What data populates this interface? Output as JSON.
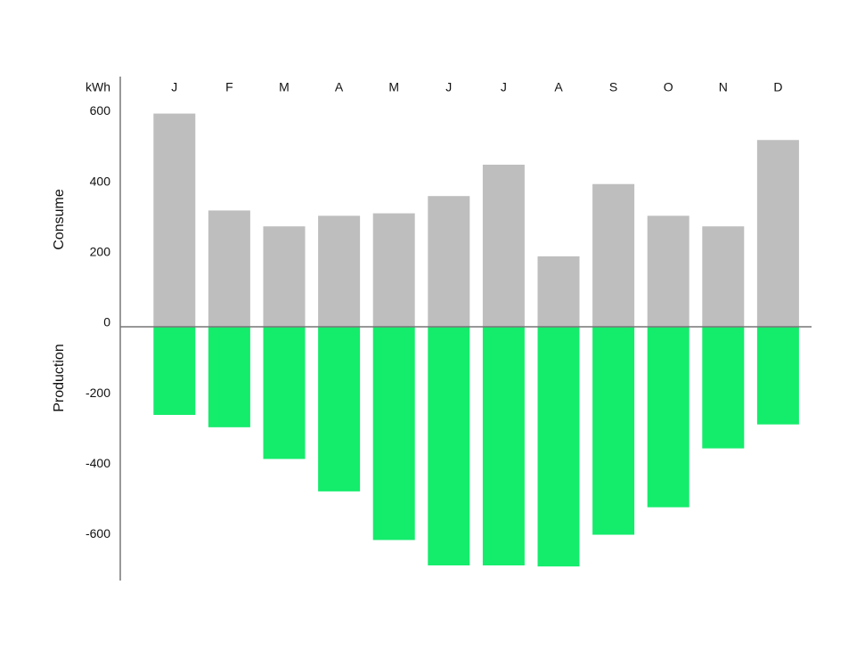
{
  "chart_data": {
    "type": "bar",
    "unit": "kWh",
    "categories": [
      "J",
      "F",
      "M",
      "A",
      "M",
      "J",
      "J",
      "A",
      "S",
      "O",
      "N",
      "D"
    ],
    "series": [
      {
        "name": "Consume",
        "color": "#bebebe",
        "values": [
          605,
          330,
          285,
          315,
          322,
          371,
          460,
          200,
          405,
          315,
          285,
          530
        ]
      },
      {
        "name": "Production",
        "color": "#14ec6c",
        "values": [
          -250,
          -285,
          -375,
          -467,
          -605,
          -677,
          -677,
          -680,
          -590,
          -512,
          -345,
          -277
        ]
      }
    ],
    "ylim": [
      -720,
      710
    ],
    "yticks": [
      -600,
      -400,
      -200,
      0,
      200,
      400,
      600
    ],
    "grid": false
  }
}
